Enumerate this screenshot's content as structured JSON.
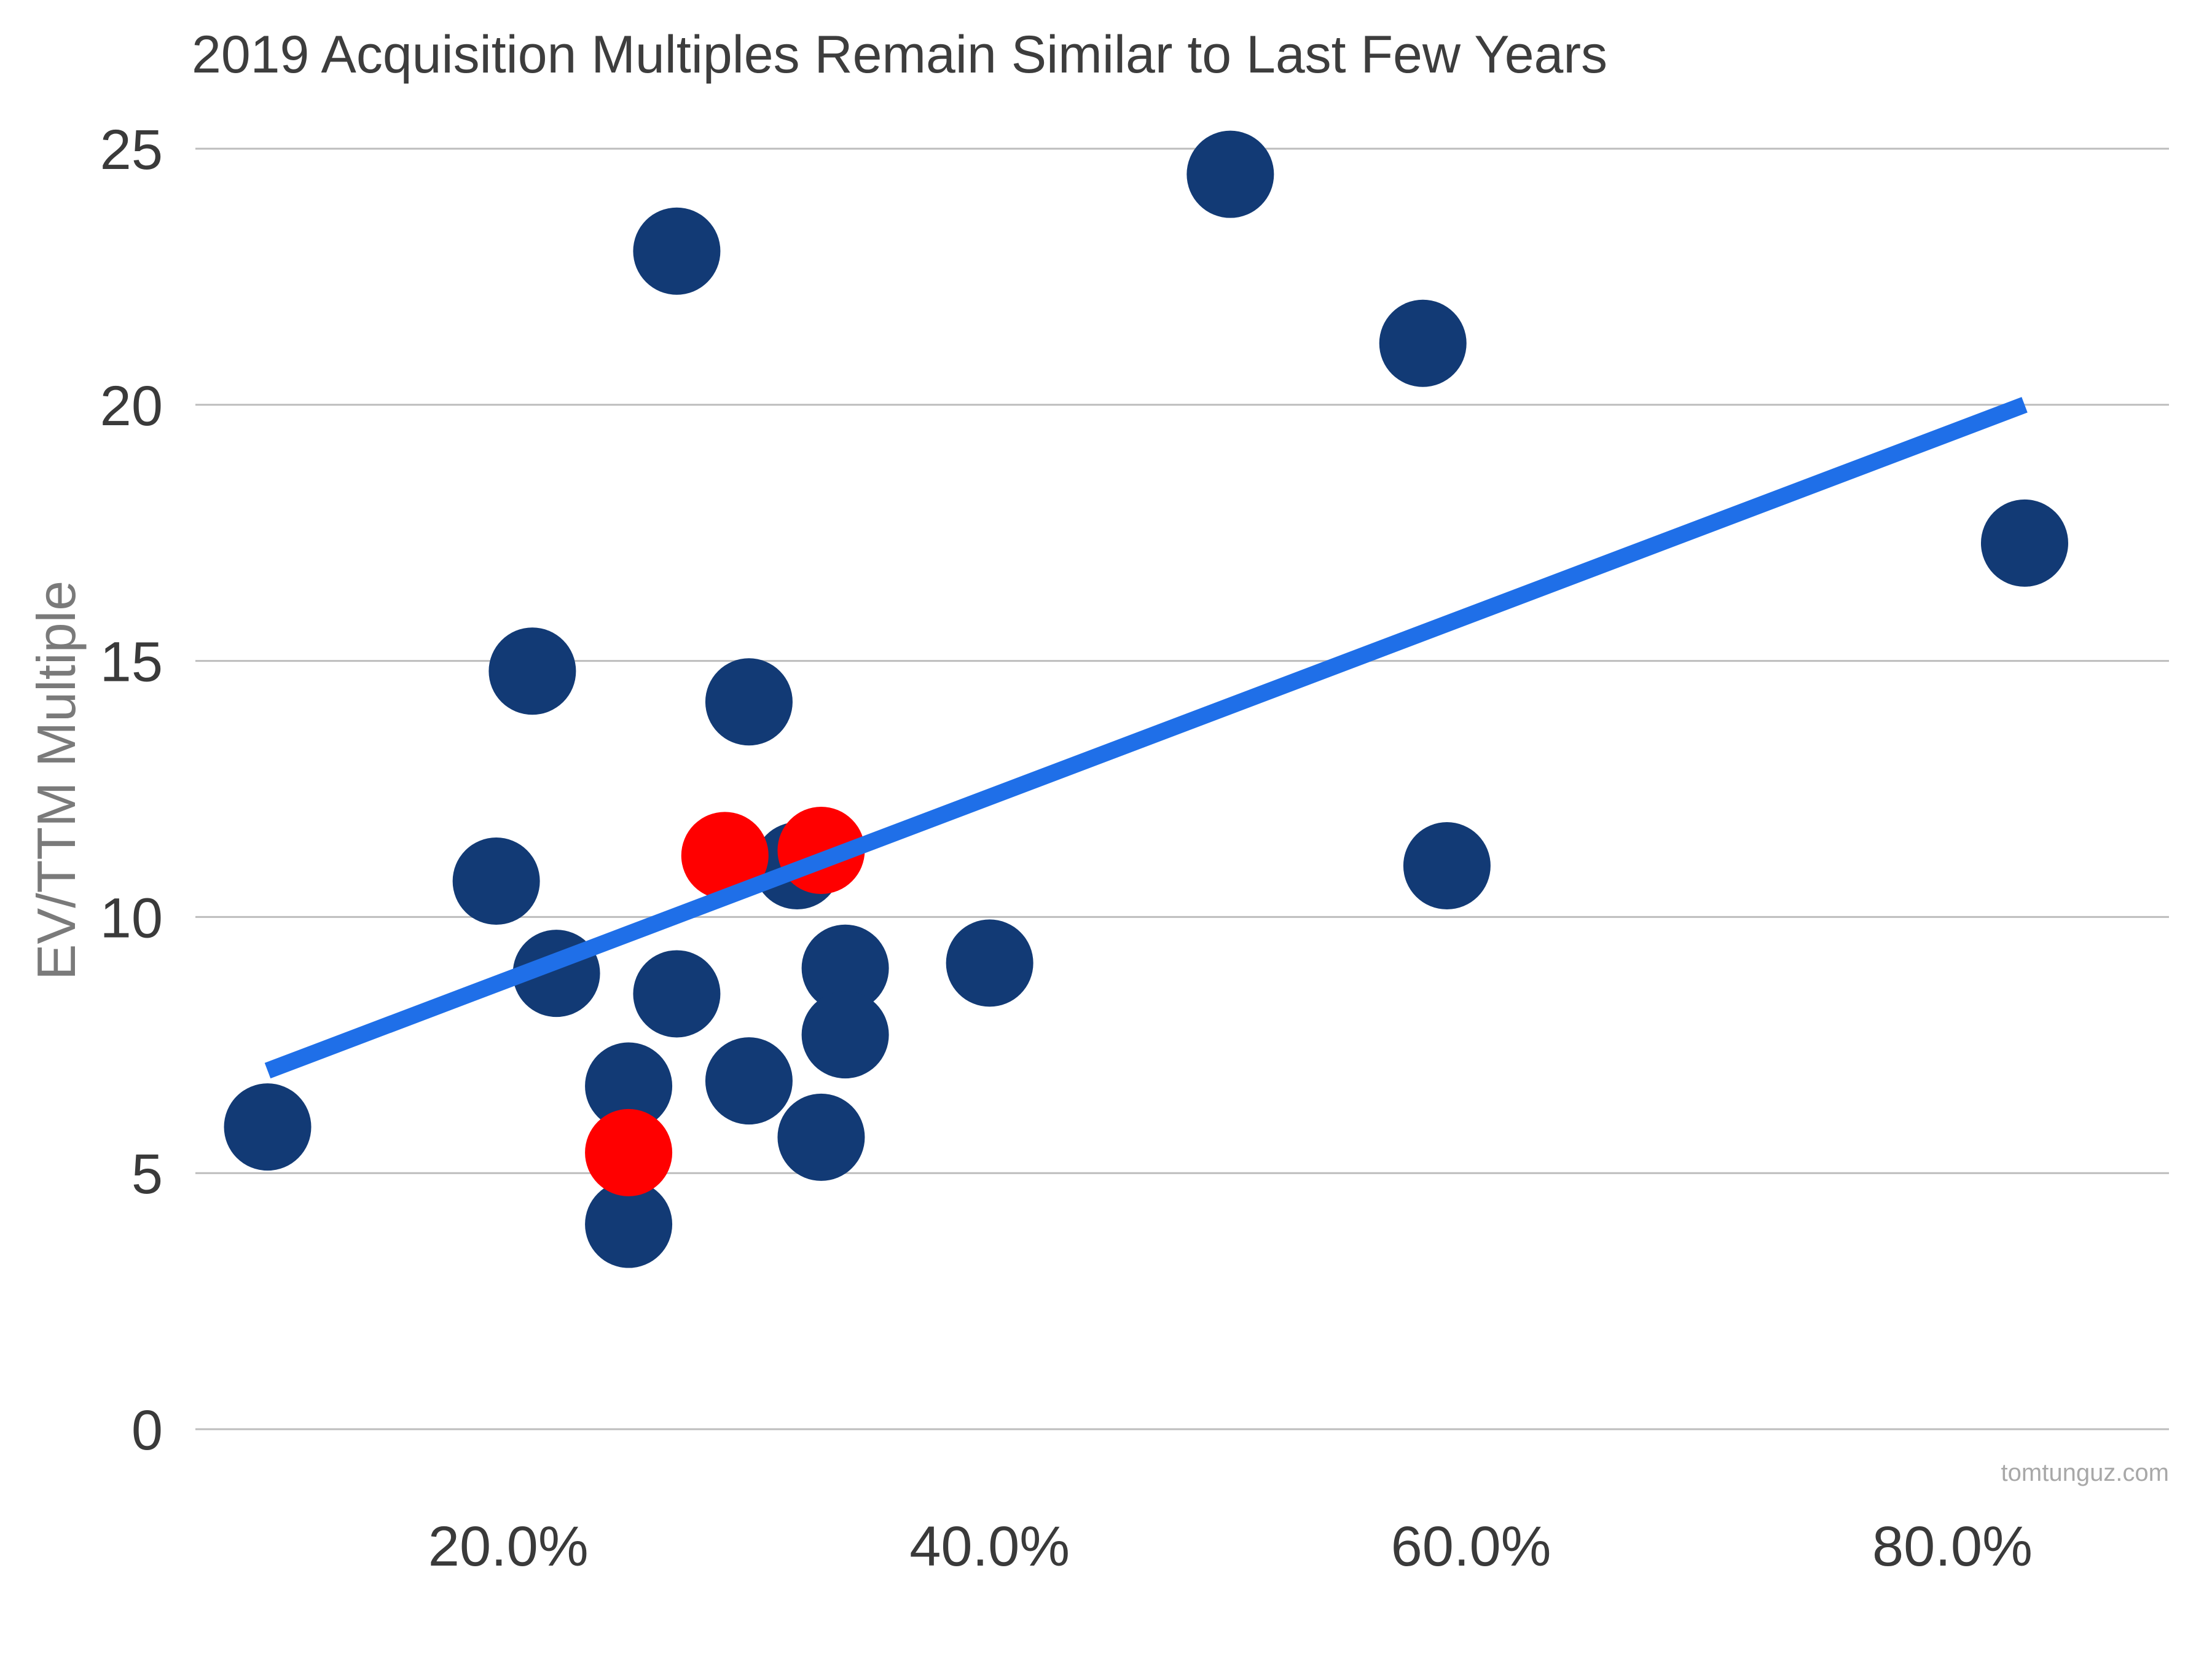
{
  "chart_data": {
    "type": "scatter",
    "title": "2019 Acquisition Multiples Remain Similar to Last Few Years",
    "xlabel": "",
    "ylabel": "EV/TTM Multiple",
    "xlim": [
      0.07,
      0.89
    ],
    "ylim": [
      0,
      25
    ],
    "x_ticks": [
      {
        "value": 0.2,
        "label": "20.0%"
      },
      {
        "value": 0.4,
        "label": "40.0%"
      },
      {
        "value": 0.6,
        "label": "60.0%"
      },
      {
        "value": 0.8,
        "label": "80.0%"
      }
    ],
    "y_ticks": [
      {
        "value": 0,
        "label": "0"
      },
      {
        "value": 5,
        "label": "5"
      },
      {
        "value": 10,
        "label": "10"
      },
      {
        "value": 15,
        "label": "15"
      },
      {
        "value": 20,
        "label": "20"
      },
      {
        "value": 25,
        "label": "25"
      }
    ],
    "grid": true,
    "legend": "none",
    "series": [
      {
        "color": "#123a75",
        "points": [
          {
            "x": 0.1,
            "y": 5.9
          },
          {
            "x": 0.195,
            "y": 10.7
          },
          {
            "x": 0.21,
            "y": 14.8
          },
          {
            "x": 0.22,
            "y": 8.9
          },
          {
            "x": 0.25,
            "y": 6.7
          },
          {
            "x": 0.25,
            "y": 4.0
          },
          {
            "x": 0.27,
            "y": 23.0
          },
          {
            "x": 0.27,
            "y": 8.5
          },
          {
            "x": 0.3,
            "y": 14.2
          },
          {
            "x": 0.3,
            "y": 6.8
          },
          {
            "x": 0.32,
            "y": 11.0
          },
          {
            "x": 0.33,
            "y": 5.7
          },
          {
            "x": 0.34,
            "y": 9.0
          },
          {
            "x": 0.34,
            "y": 7.7
          },
          {
            "x": 0.4,
            "y": 9.1
          },
          {
            "x": 0.5,
            "y": 24.5
          },
          {
            "x": 0.58,
            "y": 21.2
          },
          {
            "x": 0.59,
            "y": 11.0
          },
          {
            "x": 0.83,
            "y": 17.3
          }
        ]
      },
      {
        "color": "#ff0000",
        "points": [
          {
            "x": 0.25,
            "y": 5.4
          },
          {
            "x": 0.29,
            "y": 11.2
          },
          {
            "x": 0.33,
            "y": 11.3
          }
        ]
      }
    ],
    "trendline": {
      "color": "#1f6fe8",
      "start": {
        "x": 0.1,
        "y": 7.0
      },
      "end": {
        "x": 0.83,
        "y": 20.0
      }
    }
  },
  "credit": "tomtunguz.com"
}
